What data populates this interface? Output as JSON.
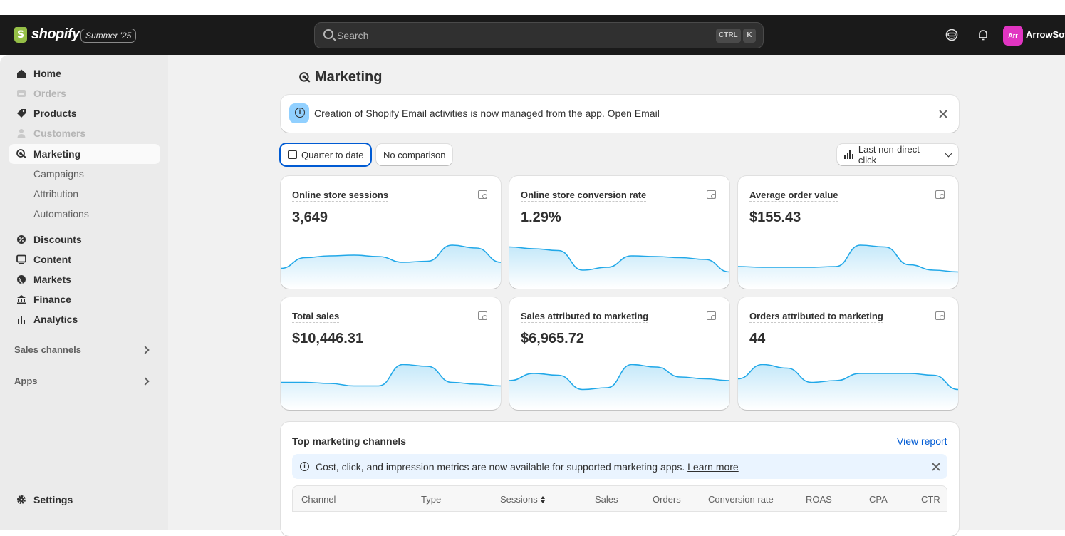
{
  "app": {
    "brand": "shopify",
    "edition": "Summer '25",
    "store_initials": "Arr",
    "store_name": "ArrowSof"
  },
  "search": {
    "placeholder": "Search",
    "shortcut_ctrl": "CTRL",
    "shortcut_key": "K"
  },
  "sidebar": {
    "items": [
      {
        "label": "Home",
        "icon": "home-icon",
        "state": "normal"
      },
      {
        "label": "Orders",
        "icon": "orders-icon",
        "state": "disabled"
      },
      {
        "label": "Products",
        "icon": "tag-icon",
        "state": "normal"
      },
      {
        "label": "Customers",
        "icon": "person-icon",
        "state": "disabled"
      },
      {
        "label": "Marketing",
        "icon": "target-icon",
        "state": "active"
      },
      {
        "label": "Campaigns",
        "state": "sub"
      },
      {
        "label": "Attribution",
        "state": "sub"
      },
      {
        "label": "Automations",
        "state": "sub"
      },
      {
        "label": "Discounts",
        "icon": "discount-icon",
        "state": "normal"
      },
      {
        "label": "Content",
        "icon": "content-icon",
        "state": "normal"
      },
      {
        "label": "Markets",
        "icon": "globe-icon",
        "state": "normal"
      },
      {
        "label": "Finance",
        "icon": "bank-icon",
        "state": "normal"
      },
      {
        "label": "Analytics",
        "icon": "chart-icon",
        "state": "normal"
      }
    ],
    "sales_channels": "Sales channels",
    "apps": "Apps",
    "settings": "Settings"
  },
  "page": {
    "title": "Marketing",
    "banner": {
      "text": "Creation of Shopify Email activities is now managed from the app. ",
      "link": "Open Email"
    },
    "filters": {
      "date": "Quarter to date",
      "comparison": "No comparison",
      "attribution": "Last non-direct click"
    }
  },
  "metrics": [
    {
      "title": "Online store sessions",
      "value": "3,649",
      "trend": [
        0.25,
        0.55,
        0.6,
        0.62,
        0.58,
        0.42,
        0.45,
        0.9,
        0.82,
        0.42
      ]
    },
    {
      "title": "Online store conversion rate",
      "value": "1.29%",
      "trend": [
        0.85,
        0.8,
        0.75,
        0.2,
        0.28,
        0.6,
        0.58,
        0.55,
        0.5,
        0.15
      ]
    },
    {
      "title": "Average order value",
      "value": "$155.43",
      "trend": [
        0.3,
        0.28,
        0.28,
        0.28,
        0.3,
        0.9,
        0.85,
        0.35,
        0.2,
        0.15
      ]
    },
    {
      "title": "Total sales",
      "value": "$10,446.31",
      "trend": [
        0.45,
        0.45,
        0.42,
        0.35,
        0.35,
        0.95,
        0.9,
        0.45,
        0.4,
        0.35
      ]
    },
    {
      "title": "Sales attributed to marketing",
      "value": "$6,965.72",
      "trend": [
        0.5,
        0.7,
        0.65,
        0.25,
        0.3,
        0.95,
        0.88,
        0.6,
        0.55,
        0.5
      ]
    },
    {
      "title": "Orders attributed to marketing",
      "value": "44",
      "trend": [
        0.55,
        0.95,
        0.85,
        0.45,
        0.5,
        0.7,
        0.7,
        0.7,
        0.65,
        0.25
      ]
    }
  ],
  "top_channels": {
    "title": "Top marketing channels",
    "view_report": "View report",
    "notice": {
      "text": "Cost, click, and impression metrics are now available for supported marketing apps. ",
      "link": "Learn more"
    },
    "columns": [
      "Channel",
      "Type",
      "Sessions",
      "Sales",
      "Orders",
      "Conversion rate",
      "ROAS",
      "CPA",
      "CTR"
    ]
  },
  "colors": {
    "accent": "#005bd3",
    "spark_line": "#21a8e8",
    "spark_fill": "#bfe6f9",
    "topbar": "#1a1a1a",
    "avatar": "#e135c2"
  }
}
